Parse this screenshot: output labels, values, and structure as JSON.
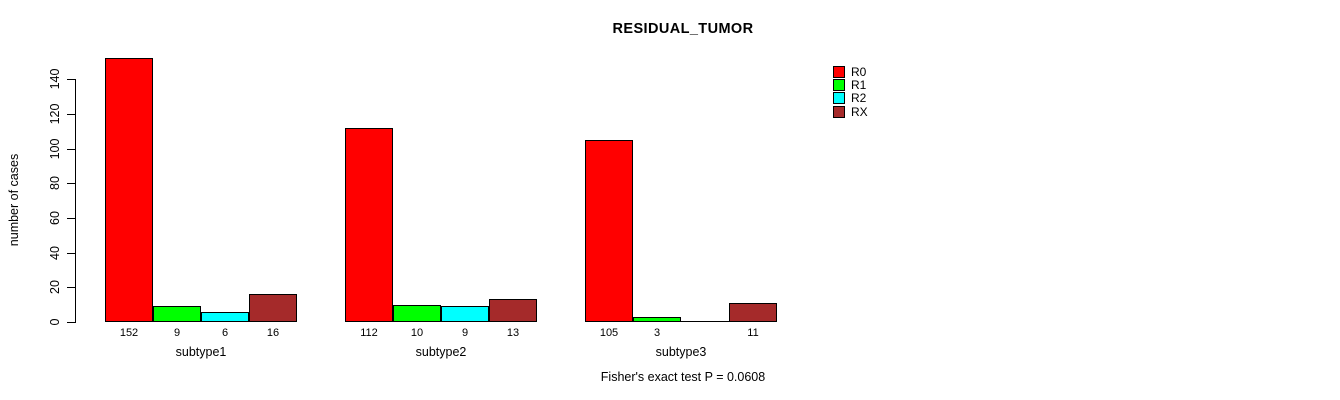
{
  "title": "RESIDUAL_TUMOR",
  "annotation": "Fisher's exact test P = 0.0608",
  "colors": {
    "R0": "#FF0000",
    "R1": "#00FF00",
    "R2": "#00FFFF",
    "RX": "#A52A2A",
    "axis": "#000000",
    "background": "#FFFFFF"
  },
  "legend": {
    "position": "topright",
    "entries": [
      {
        "label": "R0",
        "color": "#FF0000"
      },
      {
        "label": "R1",
        "color": "#00FF00"
      },
      {
        "label": "R2",
        "color": "#00FFFF"
      },
      {
        "label": "RX",
        "color": "#A52A2A"
      }
    ]
  },
  "chart_data": {
    "type": "bar",
    "grouped": true,
    "title": "RESIDUAL_TUMOR",
    "xlabel": "",
    "ylabel": "number of cases",
    "categories": [
      "subtype1",
      "subtype2",
      "subtype3"
    ],
    "series": [
      {
        "name": "R0",
        "color": "#FF0000",
        "values": [
          152,
          112,
          105
        ]
      },
      {
        "name": "R1",
        "color": "#00FF00",
        "values": [
          9,
          10,
          3
        ]
      },
      {
        "name": "R2",
        "color": "#00FFFF",
        "values": [
          6,
          9,
          0
        ]
      },
      {
        "name": "RX",
        "color": "#A52A2A",
        "values": [
          16,
          13,
          11
        ]
      }
    ],
    "bar_value_labels": [
      [
        "152",
        "9",
        "6",
        "16"
      ],
      [
        "112",
        "10",
        "9",
        "13"
      ],
      [
        "105",
        "3",
        "",
        "11"
      ]
    ],
    "yticks": [
      0,
      20,
      40,
      60,
      80,
      100,
      120,
      140
    ],
    "ylim": [
      0,
      155
    ],
    "grid": false,
    "legend_position": "topright",
    "annotation": "Fisher's exact test P = 0.0608"
  }
}
